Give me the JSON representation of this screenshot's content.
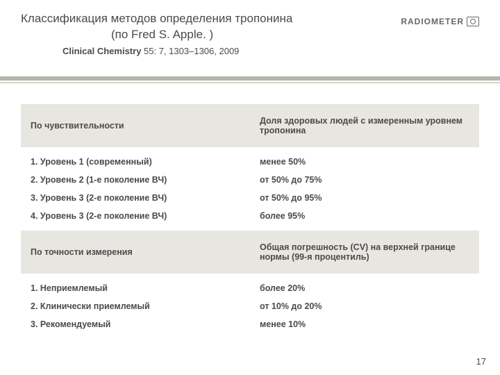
{
  "title_line1": "Классификация методов определения тропонина",
  "title_line2": "(по Fred S. Apple. )",
  "citation_bold": "Clinical Chemistry",
  "citation_rest": " 55: 7, 1303–1306, 2009",
  "logo_text": "RADIOMETER",
  "table1": {
    "header_left": "По чувствительности",
    "header_right": "Доля здоровых людей с измеренным уровнем тропонина",
    "rows": [
      {
        "left": "1. Уровень 1 (современный)",
        "right": "менее 50%"
      },
      {
        "left": "2. Уровень 2 (1-е поколение ВЧ)",
        "right": "от 50% до 75%"
      },
      {
        "left": "3. Уровень 3 (2-е поколение ВЧ)",
        "right": "от 50% до 95%"
      },
      {
        "left": "4. Уровень 3 (2-е поколение ВЧ)",
        "right": "более 95%"
      }
    ]
  },
  "table2": {
    "header_left": "По точности измерения",
    "header_right": "Общая погрешность (CV) на верхней границе нормы (99-я процентиль)",
    "rows": [
      {
        "left": "1. Неприемлемый",
        "right": "более 20%"
      },
      {
        "left": "2. Клинически приемлемый",
        "right": "от 10% до 20%"
      },
      {
        "left": "3. Рекомендуемый",
        "right": "менее 10%"
      }
    ]
  },
  "page_number": "17",
  "colors": {
    "header_bg": "#e8e6e1",
    "divider_main": "#b8b4ac",
    "divider_sub": "#d6d2ca",
    "text": "#4a4a4a"
  }
}
